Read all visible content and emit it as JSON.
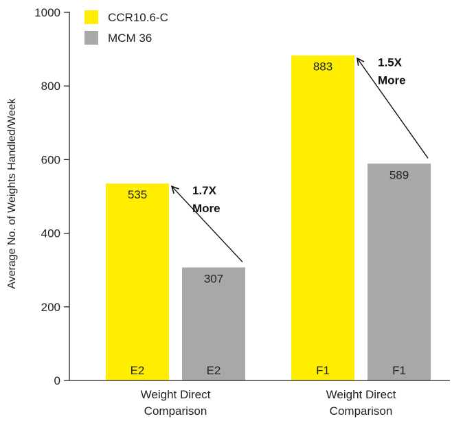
{
  "chart_data": {
    "type": "bar",
    "ylabel": "Average No. of Weights Handled/Week",
    "ylim": [
      0,
      1000
    ],
    "yticks": [
      0,
      200,
      400,
      600,
      800,
      1000
    ],
    "grid": false,
    "legend_position": "top-left",
    "groups": [
      {
        "label_line1": "Weight Direct",
        "label_line2": "Comparison"
      },
      {
        "label_line1": "Weight Direct",
        "label_line2": "Comparison"
      }
    ],
    "series": [
      {
        "name": "CCR10.6-C",
        "color": "#FFEE00",
        "values": [
          535,
          883
        ],
        "base_labels": [
          "E2",
          "F1"
        ]
      },
      {
        "name": "MCM 36",
        "color": "#A8A8AA",
        "values": [
          307,
          589
        ],
        "base_labels": [
          "E2",
          "F1"
        ]
      }
    ],
    "annotations": [
      {
        "line1": "1.7X",
        "line2": "More"
      },
      {
        "line1": "1.5X",
        "line2": "More"
      }
    ]
  }
}
